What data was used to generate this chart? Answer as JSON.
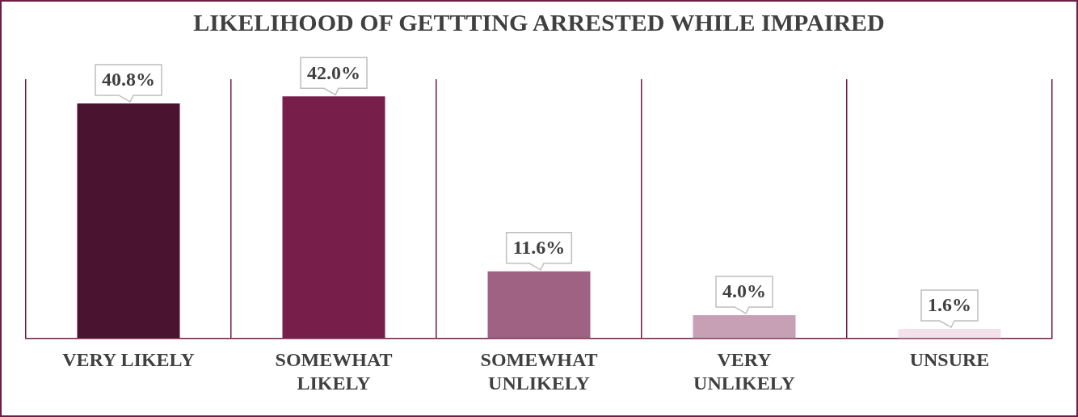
{
  "chart_data": {
    "type": "bar",
    "title": "LIKELIHOOD OF GETTTING ARRESTED WHILE IMPAIRED",
    "categories": [
      "VERY LIKELY",
      "SOMEWHAT LIKELY",
      "SOMEWHAT UNLIKELY",
      "VERY UNLIKELY",
      "UNSURE"
    ],
    "values": [
      40.8,
      42.0,
      11.6,
      4.0,
      1.6
    ],
    "value_labels": [
      "40.8%",
      "42.0%",
      "11.6%",
      "4.0%",
      "1.6%"
    ],
    "colors": [
      "#4a1330",
      "#771f4a",
      "#a06282",
      "#c8a0b6",
      "#f5e1e9"
    ],
    "grid": "x",
    "legend": false
  }
}
